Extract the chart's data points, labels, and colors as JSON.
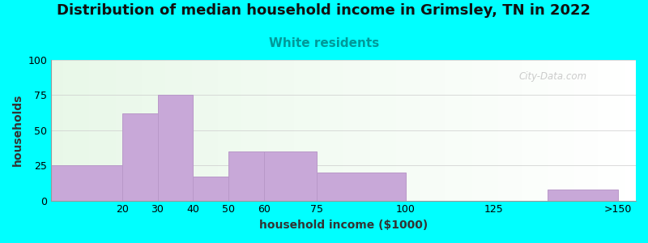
{
  "title": "Distribution of median household income in Grimsley, TN in 2022",
  "subtitle": "White residents",
  "xlabel": "household income ($1000)",
  "ylabel": "households",
  "background_outer": "#00FFFF",
  "bar_color": "#c8a8d8",
  "bar_edge_color": "#b898c8",
  "title_fontsize": 13,
  "subtitle_fontsize": 11,
  "subtitle_color": "#009999",
  "xlabel_fontsize": 10,
  "ylabel_fontsize": 10,
  "tick_fontsize": 9,
  "ylim": [
    0,
    100
  ],
  "yticks": [
    0,
    25,
    50,
    75,
    100
  ],
  "bar_left_edges": [
    0,
    20,
    30,
    40,
    50,
    60,
    75,
    100,
    140
  ],
  "bar_right_edges": [
    20,
    30,
    40,
    50,
    60,
    75,
    100,
    125,
    160
  ],
  "bar_heights": [
    25,
    62,
    75,
    17,
    35,
    35,
    20,
    0,
    8
  ],
  "xtick_positions": [
    20,
    30,
    40,
    50,
    60,
    75,
    100,
    125,
    160
  ],
  "xtick_labels": [
    "20",
    "30",
    "40",
    "50",
    "60",
    "75",
    "100",
    "125",
    ">150"
  ],
  "xlim": [
    0,
    165
  ],
  "watermark": "City-Data.com"
}
